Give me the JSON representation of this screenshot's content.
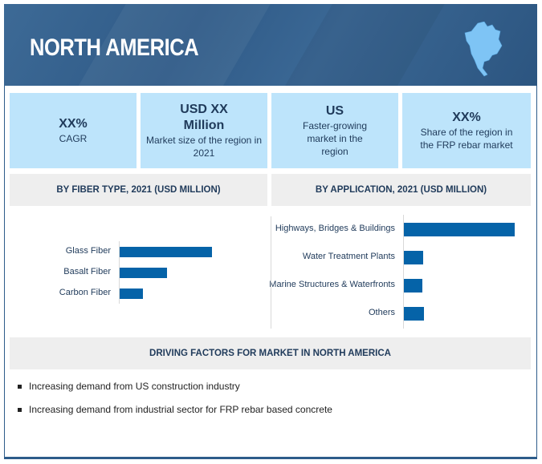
{
  "header": {
    "title": "NORTH AMERICA",
    "map_icon": "north-america-map-icon"
  },
  "stats": [
    {
      "value": "XX%",
      "label": "CAGR"
    },
    {
      "value": "USD XX Million",
      "label": "Market size of the region in 2021"
    },
    {
      "value": "US",
      "label": "Faster-growing market in the region"
    },
    {
      "value": "XX%",
      "label": "Share of the region in the FRP rebar  market"
    }
  ],
  "sections": {
    "fiber": "BY FIBER TYPE, 2021 (USD MILLION)",
    "application": "BY APPLICATION, 2021 (USD MILLION)",
    "drivers": "DRIVING FACTORS FOR MARKET IN NORTH AMERICA"
  },
  "chart_data": [
    {
      "type": "bar",
      "orientation": "horizontal",
      "title": "BY FIBER TYPE, 2021 (USD MILLION)",
      "categories": [
        "Glass Fiber",
        "Basalt Fiber",
        "Carbon Fiber"
      ],
      "values": [
        115,
        59,
        29
      ],
      "value_note": "relative bar lengths, no axis values printed",
      "color": "#0563a8"
    },
    {
      "type": "bar",
      "orientation": "horizontal",
      "title": "BY APPLICATION, 2021 (USD MILLION)",
      "categories": [
        "Highways, Bridges & Buildings",
        "Water Treatment Plants",
        "Marine Structures & Waterfronts",
        "Others"
      ],
      "values": [
        138,
        24,
        23,
        25
      ],
      "color": "#0563a8"
    }
  ],
  "drivers": [
    "Increasing demand from US construction industry",
    "Increasing demand from industrial sector for FRP rebar based concrete"
  ]
}
